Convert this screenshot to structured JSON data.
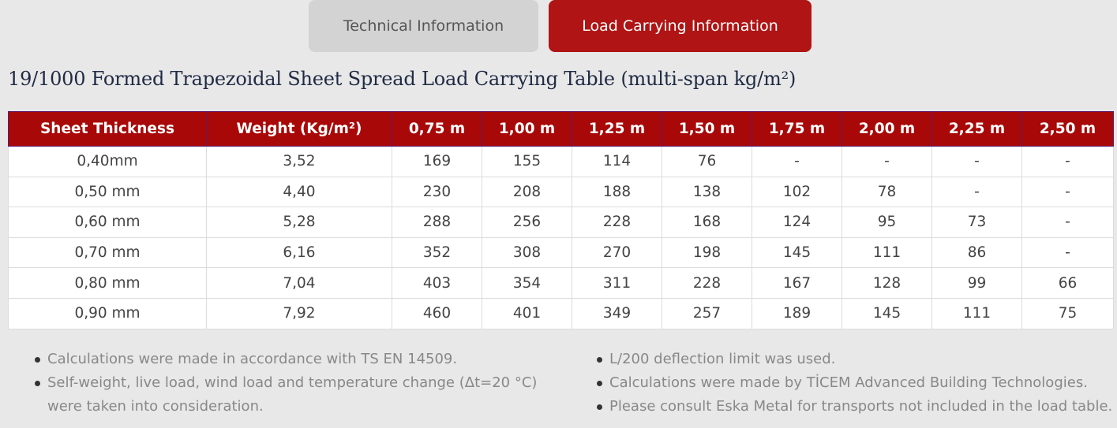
{
  "tabs": [
    {
      "label": "Technical Information"
    },
    {
      "label": "Load Carrying Information"
    }
  ],
  "page_title": "19/1000 Formed Trapezoidal Sheet Spread Load Carrying Table (multi-span kg/m²)",
  "table": {
    "headers": [
      "Sheet Thickness",
      "Weight (Kg/m²)",
      "0,75 m",
      "1,00 m",
      "1,25 m",
      "1,50 m",
      "1,75 m",
      "2,00 m",
      "2,25 m",
      "2,50 m"
    ],
    "rows": [
      [
        "0,40mm",
        "3,52",
        "169",
        "155",
        "114",
        "76",
        "-",
        "-",
        "-",
        "-"
      ],
      [
        "0,50 mm",
        "4,40",
        "230",
        "208",
        "188",
        "138",
        "102",
        "78",
        "-",
        "-"
      ],
      [
        "0,60 mm",
        "5,28",
        "288",
        "256",
        "228",
        "168",
        "124",
        "95",
        "73",
        "-"
      ],
      [
        "0,70 mm",
        "6,16",
        "352",
        "308",
        "270",
        "198",
        "145",
        "111",
        "86",
        "-"
      ],
      [
        "0,80 mm",
        "7,04",
        "403",
        "354",
        "311",
        "228",
        "167",
        "128",
        "99",
        "66"
      ],
      [
        "0,90 mm",
        "7,92",
        "460",
        "401",
        "349",
        "257",
        "189",
        "145",
        "111",
        "75"
      ]
    ]
  },
  "notes": {
    "left": [
      "Calculations were made in accordance with TS EN 14509.",
      "Self-weight, live load, wind load and temperature change (Δt=20 °C) were taken into consideration."
    ],
    "right": [
      "L/200 deflection limit was used.",
      "Calculations were made by TİCEM Advanced Building Technologies.",
      "Please consult Eska Metal for transports not included in the load table."
    ]
  },
  "colors": {
    "accent": "#a80808",
    "active_tab": "#b01414",
    "inactive_tab": "#d3d3d3",
    "background": "#e8e8e8"
  }
}
